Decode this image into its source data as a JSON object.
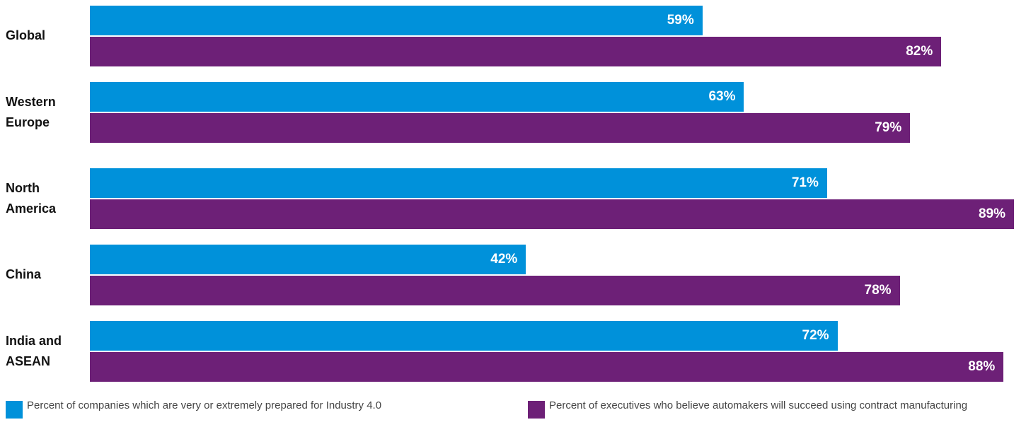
{
  "chart_data": {
    "type": "bar",
    "orientation": "horizontal",
    "categories": [
      "Global",
      "Western Europe",
      "North America",
      "China",
      "India and ASEAN"
    ],
    "xlim": [
      0,
      89
    ],
    "series": [
      {
        "name": "Percent of companies which are very or extremely prepared for Industry 4.0",
        "color": "#0091da",
        "values": [
          59,
          63,
          71,
          42,
          72
        ],
        "value_labels": [
          "59%",
          "63%",
          "71%",
          "42%",
          "72%"
        ]
      },
      {
        "name": "Percent of executives who believe automakers will succeed using contract manufacturing",
        "color": "#6d2077",
        "values": [
          82,
          79,
          89,
          78,
          88
        ],
        "value_labels": [
          "82%",
          "79%",
          "89%",
          "78%",
          "88%"
        ]
      }
    ]
  }
}
